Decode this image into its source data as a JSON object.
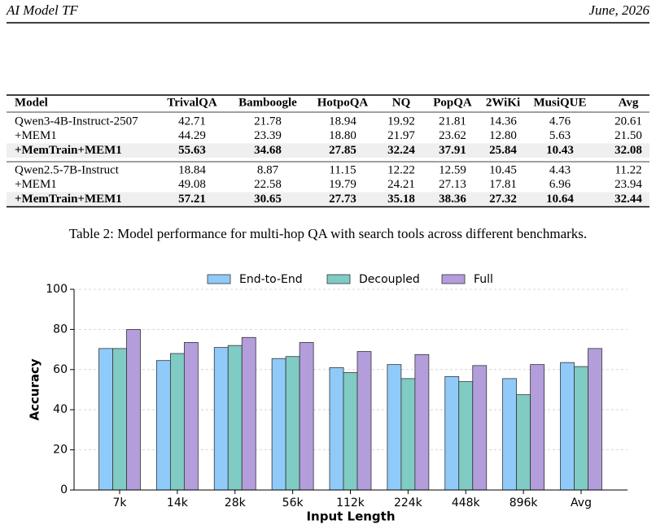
{
  "header": {
    "title": "AI Model TF",
    "date": "June, 2026"
  },
  "table": {
    "columns": [
      "Model",
      "TrivalQA",
      "Bamboogle",
      "HotpoQA",
      "NQ",
      "PopQA",
      "2WiKi",
      "MusiQUE",
      "Avg"
    ],
    "groups": [
      [
        [
          "Qwen3-4B-Instruct-2507",
          "42.71",
          "21.78",
          "18.94",
          "19.92",
          "21.81",
          "14.36",
          "4.76",
          "20.61"
        ],
        [
          "+MEM1",
          "44.29",
          "23.39",
          "18.80",
          "21.97",
          "23.62",
          "12.80",
          "5.63",
          "21.50"
        ],
        [
          "+MemTrain+MEM1",
          "55.63",
          "34.68",
          "27.85",
          "32.24",
          "37.91",
          "25.84",
          "10.43",
          "32.08"
        ]
      ],
      [
        [
          "Qwen2.5-7B-Instruct",
          "18.84",
          "8.87",
          "11.15",
          "12.22",
          "12.59",
          "10.45",
          "4.43",
          "11.22"
        ],
        [
          "+MEM1",
          "49.08",
          "22.58",
          "19.79",
          "24.21",
          "27.13",
          "17.81",
          "6.96",
          "23.94"
        ],
        [
          "+MemTrain+MEM1",
          "57.21",
          "30.65",
          "27.73",
          "35.18",
          "38.36",
          "27.32",
          "10.64",
          "32.44"
        ]
      ]
    ],
    "caption": "Table 2: Model performance for multi-hop QA with search tools across different benchmarks."
  },
  "chart_data": {
    "type": "bar",
    "x_label": "Input Length",
    "y_label": "Accuracy",
    "categories": [
      "7k",
      "14k",
      "28k",
      "56k",
      "112k",
      "224k",
      "448k",
      "896k",
      "Avg"
    ],
    "series": [
      {
        "name": "End-to-End",
        "color": "#90caf9",
        "values": [
          70.5,
          64.5,
          71,
          65.5,
          61,
          62.5,
          56.5,
          55.5,
          63.5
        ]
      },
      {
        "name": "Decoupled",
        "color": "#80cbc4",
        "values": [
          70.5,
          68,
          72,
          66.5,
          58.5,
          55.5,
          54,
          47.5,
          61.5
        ]
      },
      {
        "name": "Full",
        "color": "#b39ddb",
        "values": [
          80,
          73.5,
          76,
          73.5,
          69,
          67.5,
          62,
          62.5,
          70.5
        ]
      }
    ],
    "ylim": [
      0,
      100
    ],
    "yticks": [
      0,
      20,
      40,
      60,
      80,
      100
    ],
    "grid": true,
    "legend": "top"
  }
}
